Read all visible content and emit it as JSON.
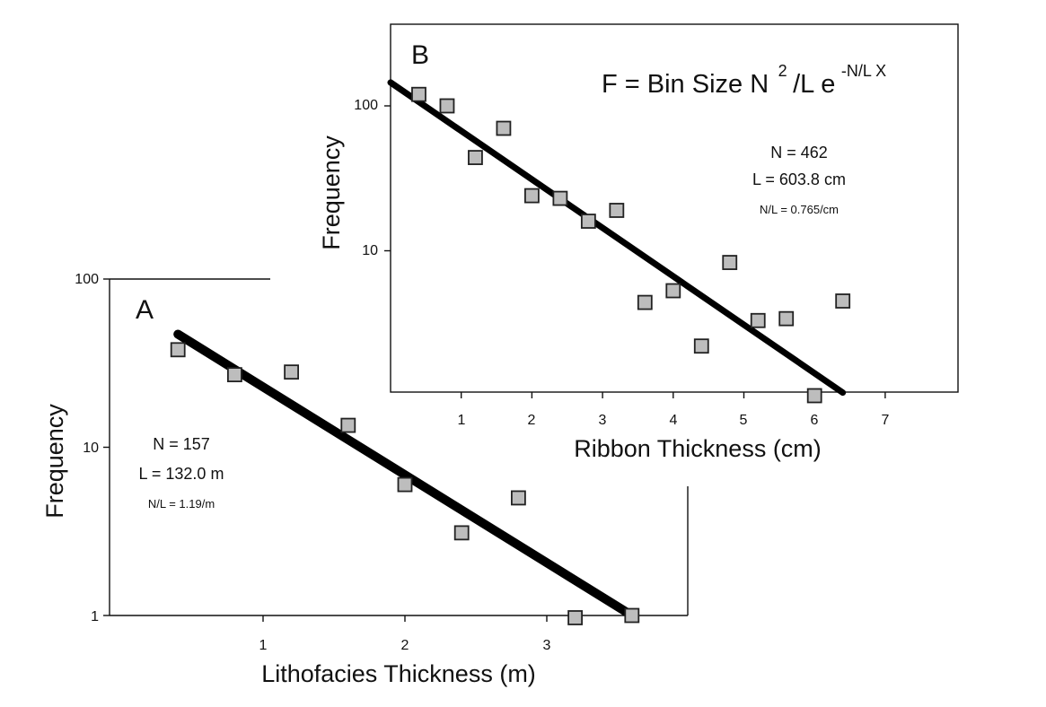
{
  "chart_data": [
    {
      "panel": "A",
      "type": "scatter",
      "xlabel": "Lithofacies Thickness (m)",
      "ylabel": "Frequency",
      "y_scale": "log",
      "xlim": [
        0,
        3.9
      ],
      "ylim": [
        1,
        100
      ],
      "x_ticks": [
        "1",
        "2",
        "3"
      ],
      "y_ticks": [
        "1",
        "10",
        "100"
      ],
      "points": [
        {
          "x": 0.4,
          "y": 38
        },
        {
          "x": 0.8,
          "y": 27
        },
        {
          "x": 1.2,
          "y": 28
        },
        {
          "x": 1.6,
          "y": 13.5
        },
        {
          "x": 2.0,
          "y": 6.0
        },
        {
          "x": 2.4,
          "y": 3.1
        },
        {
          "x": 2.8,
          "y": 5.0
        },
        {
          "x": 3.2,
          "y": 0.97
        },
        {
          "x": 3.6,
          "y": 1.0
        }
      ],
      "fit_line": {
        "x": [
          0.4,
          3.6
        ],
        "y": [
          47,
          1.0
        ]
      },
      "annotations": {
        "n": "N = 157",
        "l": "L = 132.0 m",
        "nl": "N/L = 1.19/m"
      }
    },
    {
      "panel": "B",
      "type": "scatter",
      "xlabel": "Ribbon Thickness (cm)",
      "ylabel": "Frequency",
      "y_scale": "log",
      "xlim": [
        0,
        8
      ],
      "ylim": [
        1,
        300
      ],
      "x_ticks": [
        "1",
        "2",
        "3",
        "4",
        "5",
        "6",
        "7"
      ],
      "y_ticks": [
        "10",
        "100"
      ],
      "points": [
        {
          "x": 0.4,
          "y": 120
        },
        {
          "x": 0.8,
          "y": 100
        },
        {
          "x": 1.2,
          "y": 44
        },
        {
          "x": 1.6,
          "y": 70
        },
        {
          "x": 2.0,
          "y": 24
        },
        {
          "x": 2.4,
          "y": 23
        },
        {
          "x": 2.8,
          "y": 16
        },
        {
          "x": 3.2,
          "y": 19
        },
        {
          "x": 3.6,
          "y": 4.4
        },
        {
          "x": 4.0,
          "y": 5.3
        },
        {
          "x": 4.4,
          "y": 2.2
        },
        {
          "x": 4.8,
          "y": 8.3
        },
        {
          "x": 5.2,
          "y": 3.3
        },
        {
          "x": 5.6,
          "y": 3.4
        },
        {
          "x": 6.0,
          "y": 1.0
        },
        {
          "x": 6.4,
          "y": 4.5
        }
      ],
      "fit_line": {
        "x": [
          0.0,
          6.4
        ],
        "y": [
          145,
          1.05
        ]
      },
      "annotations": {
        "formula_main": "F = Bin Size N",
        "formula_sup1": "2",
        "formula_mid": "/L e",
        "formula_sup2": "-N/L X",
        "n": "N = 462",
        "l": "L = 603.8 cm",
        "nl": "N/L = 0.765/cm"
      }
    }
  ]
}
